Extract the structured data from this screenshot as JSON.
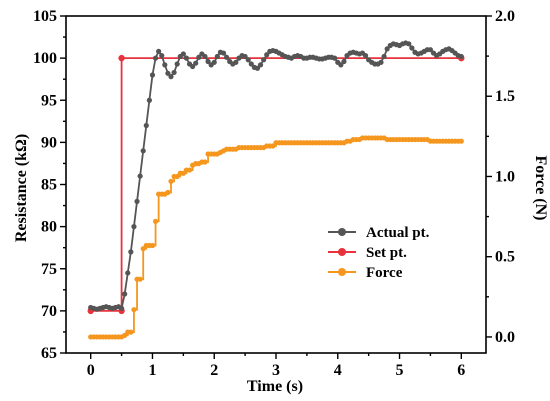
{
  "chart_data": {
    "type": "line",
    "xlabel": "Time (s)",
    "ylabel_left": "Resistance (kΩ)",
    "ylabel_right": "Force (N)",
    "xlim": [
      -0.4,
      6.4
    ],
    "ylim_left": [
      65,
      105
    ],
    "ylim_right": [
      -0.1,
      2.0
    ],
    "x_ticks": [
      0,
      1,
      2,
      3,
      4,
      5,
      6
    ],
    "x_tick_labels": [
      "0",
      "1",
      "2",
      "3",
      "4",
      "5",
      "6"
    ],
    "y_left_ticks": [
      65,
      70,
      75,
      80,
      85,
      90,
      95,
      100,
      105
    ],
    "y_left_tick_labels": [
      "65",
      "70",
      "75",
      "80",
      "85",
      "90",
      "95",
      "100",
      "105"
    ],
    "y_right_ticks": [
      0.0,
      0.5,
      1.0,
      1.5,
      2.0
    ],
    "y_right_tick_labels": [
      "0.0",
      "0.5",
      "1.0",
      "1.5",
      "2.0"
    ],
    "legend_position": "right-middle",
    "series": [
      {
        "name": "Actual pt.",
        "axis": "left",
        "color": "#555555",
        "marker": "circle",
        "x": [
          0,
          0.05,
          0.1,
          0.15,
          0.2,
          0.25,
          0.3,
          0.35,
          0.4,
          0.45,
          0.5,
          0.55,
          0.6,
          0.65,
          0.7,
          0.75,
          0.8,
          0.85,
          0.9,
          0.95,
          1.0,
          1.05,
          1.1,
          1.15,
          1.2,
          1.25,
          1.3,
          1.35,
          1.4,
          1.45,
          1.5,
          1.55,
          1.6,
          1.65,
          1.7,
          1.75,
          1.8,
          1.85,
          1.9,
          1.95,
          2.0,
          2.05,
          2.1,
          2.15,
          2.2,
          2.25,
          2.3,
          2.35,
          2.4,
          2.45,
          2.5,
          2.55,
          2.6,
          2.65,
          2.7,
          2.75,
          2.8,
          2.85,
          2.9,
          2.95,
          3.0,
          3.05,
          3.1,
          3.15,
          3.2,
          3.25,
          3.3,
          3.35,
          3.4,
          3.45,
          3.5,
          3.55,
          3.6,
          3.65,
          3.7,
          3.75,
          3.8,
          3.85,
          3.9,
          3.95,
          4.0,
          4.05,
          4.1,
          4.15,
          4.2,
          4.25,
          4.3,
          4.35,
          4.4,
          4.45,
          4.5,
          4.55,
          4.6,
          4.65,
          4.7,
          4.75,
          4.8,
          4.85,
          4.9,
          4.95,
          5.0,
          5.05,
          5.1,
          5.15,
          5.2,
          5.25,
          5.3,
          5.35,
          5.4,
          5.45,
          5.5,
          5.55,
          5.6,
          5.65,
          5.7,
          5.75,
          5.8,
          5.85,
          5.9,
          5.95,
          6.0
        ],
        "y": [
          70.4,
          70.3,
          70.2,
          70.3,
          70.4,
          70.5,
          70.4,
          70.3,
          70.4,
          70.5,
          70.3,
          72.0,
          74.5,
          77.0,
          80.0,
          83.0,
          86.0,
          89.0,
          92.0,
          95.0,
          98.0,
          100.0,
          100.8,
          100.3,
          99.2,
          98.2,
          97.8,
          98.3,
          99.3,
          100.2,
          100.5,
          100.0,
          99.3,
          99.0,
          99.4,
          100.1,
          100.5,
          100.2,
          99.6,
          99.2,
          99.5,
          100.2,
          100.7,
          100.6,
          100.1,
          99.6,
          99.3,
          99.5,
          100.0,
          100.3,
          100.2,
          99.8,
          99.3,
          98.9,
          98.8,
          99.2,
          99.8,
          100.4,
          100.8,
          100.9,
          100.8,
          100.6,
          100.4,
          100.2,
          100.1,
          100.0,
          100.2,
          100.3,
          100.2,
          100.0,
          100.0,
          100.1,
          100.1,
          100.0,
          99.9,
          99.9,
          100.0,
          100.1,
          100.1,
          100.0,
          99.5,
          99.2,
          99.6,
          100.3,
          100.6,
          100.7,
          100.6,
          100.5,
          100.6,
          100.3,
          99.8,
          99.5,
          99.3,
          99.3,
          99.5,
          100.2,
          101.1,
          101.5,
          101.7,
          101.6,
          101.5,
          101.7,
          101.8,
          101.7,
          101.2,
          100.7,
          100.5,
          100.6,
          100.8,
          101.0,
          101.0,
          100.6,
          100.3,
          100.5,
          100.8,
          101.0,
          101.1,
          100.9,
          100.6,
          100.3,
          100.2
        ]
      },
      {
        "name": "Set pt.",
        "axis": "left",
        "color": "#e8323c",
        "marker": "circle",
        "x": [
          0,
          0.5,
          0.5,
          6.0
        ],
        "y": [
          70,
          70,
          100,
          100
        ]
      },
      {
        "name": "Force",
        "axis": "right",
        "color": "#f5961e",
        "marker": "circle",
        "x": [
          0,
          0.05,
          0.1,
          0.15,
          0.2,
          0.25,
          0.3,
          0.35,
          0.4,
          0.45,
          0.5,
          0.55,
          0.6,
          0.65,
          0.7,
          0.75,
          0.8,
          0.85,
          0.9,
          0.95,
          1.0,
          1.05,
          1.1,
          1.15,
          1.2,
          1.25,
          1.3,
          1.35,
          1.4,
          1.45,
          1.5,
          1.55,
          1.6,
          1.65,
          1.7,
          1.75,
          1.8,
          1.85,
          1.9,
          1.95,
          2.0,
          2.05,
          2.1,
          2.15,
          2.2,
          2.25,
          2.3,
          2.35,
          2.4,
          2.45,
          2.5,
          2.55,
          2.6,
          2.65,
          2.7,
          2.75,
          2.8,
          2.85,
          2.9,
          2.95,
          3.0,
          3.05,
          3.1,
          3.15,
          3.2,
          3.25,
          3.3,
          3.35,
          3.4,
          3.45,
          3.5,
          3.55,
          3.6,
          3.65,
          3.7,
          3.75,
          3.8,
          3.85,
          3.9,
          3.95,
          4.0,
          4.05,
          4.1,
          4.15,
          4.2,
          4.25,
          4.3,
          4.35,
          4.4,
          4.45,
          4.5,
          4.55,
          4.6,
          4.65,
          4.7,
          4.75,
          4.8,
          4.85,
          4.9,
          4.95,
          5.0,
          5.05,
          5.1,
          5.15,
          5.2,
          5.25,
          5.3,
          5.35,
          5.4,
          5.45,
          5.5,
          5.55,
          5.6,
          5.65,
          5.7,
          5.75,
          5.8,
          5.85,
          5.9,
          5.95,
          6.0
        ],
        "y": [
          0.0,
          0.0,
          0.0,
          0.0,
          0.0,
          0.0,
          0.0,
          0.0,
          0.0,
          0.0,
          0.0,
          0.01,
          0.03,
          0.03,
          0.17,
          0.36,
          0.36,
          0.55,
          0.57,
          0.57,
          0.57,
          0.72,
          0.89,
          0.89,
          0.89,
          0.9,
          0.97,
          1.0,
          1.0,
          1.02,
          1.02,
          1.04,
          1.04,
          1.07,
          1.08,
          1.08,
          1.09,
          1.09,
          1.14,
          1.14,
          1.14,
          1.14,
          1.15,
          1.16,
          1.17,
          1.17,
          1.17,
          1.17,
          1.18,
          1.18,
          1.18,
          1.18,
          1.18,
          1.18,
          1.18,
          1.18,
          1.18,
          1.19,
          1.19,
          1.19,
          1.21,
          1.21,
          1.21,
          1.21,
          1.21,
          1.21,
          1.21,
          1.21,
          1.21,
          1.21,
          1.21,
          1.21,
          1.21,
          1.21,
          1.21,
          1.21,
          1.21,
          1.21,
          1.21,
          1.21,
          1.21,
          1.21,
          1.21,
          1.22,
          1.22,
          1.23,
          1.23,
          1.23,
          1.24,
          1.24,
          1.24,
          1.24,
          1.24,
          1.24,
          1.24,
          1.24,
          1.23,
          1.23,
          1.23,
          1.23,
          1.23,
          1.23,
          1.23,
          1.23,
          1.23,
          1.23,
          1.23,
          1.23,
          1.23,
          1.23,
          1.22,
          1.22,
          1.22,
          1.22,
          1.22,
          1.22,
          1.22,
          1.22,
          1.22,
          1.22,
          1.22
        ]
      }
    ]
  }
}
